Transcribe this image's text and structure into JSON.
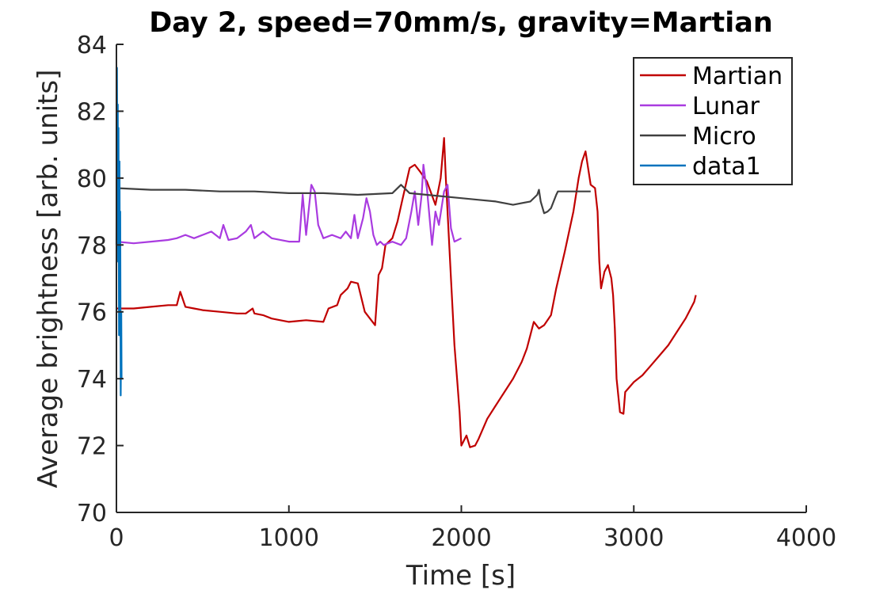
{
  "chart_data": {
    "type": "line",
    "title": "Day 2, speed=70mm/s, gravity=Martian",
    "xlabel": "Time [s]",
    "ylabel": "Average brightness [arb. units]",
    "xlim": [
      0,
      4000
    ],
    "ylim": [
      70,
      84
    ],
    "x_ticks": [
      0,
      1000,
      2000,
      3000,
      4000
    ],
    "x_tick_labels": [
      "0",
      "1000",
      "2000",
      "3000",
      "4000"
    ],
    "y_ticks": [
      70,
      72,
      74,
      76,
      78,
      80,
      82,
      84
    ],
    "y_tick_labels": [
      "70",
      "72",
      "74",
      "76",
      "78",
      "80",
      "82",
      "84"
    ],
    "grid": false,
    "legend_position": "top-right",
    "series": [
      {
        "name": "Martian",
        "color": "#c00000",
        "x": [
          0,
          100,
          200,
          300,
          350,
          370,
          400,
          450,
          500,
          600,
          700,
          750,
          790,
          800,
          850,
          900,
          1000,
          1100,
          1200,
          1230,
          1280,
          1300,
          1340,
          1360,
          1400,
          1440,
          1470,
          1500,
          1520,
          1540,
          1560,
          1600,
          1630,
          1660,
          1700,
          1730,
          1760,
          1800,
          1850,
          1880,
          1900,
          1910,
          1940,
          1960,
          1975,
          1990,
          2000,
          2030,
          2050,
          2080,
          2100,
          2150,
          2200,
          2250,
          2300,
          2350,
          2380,
          2400,
          2420,
          2450,
          2480,
          2520,
          2550,
          2600,
          2650,
          2680,
          2700,
          2720,
          2750,
          2775,
          2790,
          2800,
          2810,
          2830,
          2850,
          2870,
          2880,
          2890,
          2900,
          2920,
          2940,
          2950,
          3000,
          3050,
          3100,
          3150,
          3200,
          3250,
          3300,
          3350,
          3360
        ],
        "y": [
          76.1,
          76.1,
          76.15,
          76.2,
          76.2,
          76.6,
          76.15,
          76.1,
          76.05,
          76.0,
          75.95,
          75.95,
          76.1,
          75.95,
          75.9,
          75.8,
          75.7,
          75.75,
          75.7,
          76.1,
          76.2,
          76.5,
          76.7,
          76.9,
          76.85,
          76.0,
          75.8,
          75.6,
          77.1,
          77.3,
          78.0,
          78.2,
          78.7,
          79.4,
          80.3,
          80.4,
          80.2,
          79.9,
          79.2,
          80.0,
          81.2,
          80.0,
          77.0,
          75.0,
          74.0,
          73.0,
          72.0,
          72.3,
          71.95,
          72.0,
          72.2,
          72.8,
          73.2,
          73.6,
          74.0,
          74.5,
          74.9,
          75.3,
          75.7,
          75.5,
          75.6,
          75.9,
          76.7,
          77.8,
          79.0,
          80.0,
          80.5,
          80.8,
          79.8,
          79.7,
          79.0,
          77.5,
          76.7,
          77.2,
          77.4,
          77.0,
          76.5,
          75.5,
          74.0,
          73.0,
          72.95,
          73.6,
          73.9,
          74.1,
          74.4,
          74.7,
          75.0,
          75.4,
          75.8,
          76.3,
          76.5
        ]
      },
      {
        "name": "Lunar",
        "color": "#a93be0",
        "x": [
          0,
          100,
          200,
          300,
          350,
          400,
          450,
          500,
          550,
          600,
          620,
          650,
          700,
          750,
          780,
          800,
          850,
          900,
          1000,
          1060,
          1080,
          1100,
          1130,
          1150,
          1170,
          1200,
          1250,
          1300,
          1330,
          1360,
          1380,
          1400,
          1430,
          1450,
          1470,
          1490,
          1510,
          1530,
          1550,
          1600,
          1650,
          1680,
          1710,
          1730,
          1750,
          1770,
          1780,
          1790,
          1800,
          1830,
          1850,
          1870,
          1900,
          1920,
          1940,
          1960,
          2000
        ],
        "y": [
          78.1,
          78.05,
          78.1,
          78.15,
          78.2,
          78.3,
          78.2,
          78.3,
          78.4,
          78.2,
          78.6,
          78.15,
          78.2,
          78.4,
          78.6,
          78.2,
          78.4,
          78.2,
          78.1,
          78.1,
          79.5,
          78.3,
          79.8,
          79.6,
          78.6,
          78.2,
          78.3,
          78.2,
          78.4,
          78.2,
          78.9,
          78.2,
          78.8,
          79.4,
          79.0,
          78.3,
          78.0,
          78.1,
          78.0,
          78.1,
          78.0,
          78.2,
          79.0,
          79.6,
          78.6,
          79.5,
          80.4,
          80.0,
          79.7,
          78.0,
          79.0,
          78.6,
          79.6,
          79.8,
          78.5,
          78.1,
          78.2
        ]
      },
      {
        "name": "Micro",
        "color": "#404040",
        "x": [
          0,
          200,
          400,
          600,
          800,
          1000,
          1200,
          1400,
          1600,
          1650,
          1700,
          1800,
          2000,
          2100,
          2200,
          2300,
          2400,
          2440,
          2450,
          2460,
          2480,
          2500,
          2520,
          2550,
          2560,
          2600,
          2650,
          2700,
          2750
        ],
        "y": [
          79.7,
          79.65,
          79.65,
          79.6,
          79.6,
          79.55,
          79.55,
          79.5,
          79.55,
          79.8,
          79.55,
          79.5,
          79.4,
          79.35,
          79.3,
          79.2,
          79.3,
          79.5,
          79.65,
          79.3,
          78.95,
          79.0,
          79.1,
          79.5,
          79.6,
          79.6,
          79.6,
          79.6,
          79.6
        ]
      },
      {
        "name": "data1",
        "color": "#0072bd",
        "x": [
          0,
          3,
          6,
          8,
          10,
          12,
          15,
          18,
          20,
          22,
          25,
          28,
          30
        ],
        "y": [
          78.0,
          83.3,
          79.0,
          82.2,
          77.5,
          81.5,
          75.3,
          80.5,
          76.5,
          79.0,
          73.5,
          76.0,
          74.0
        ]
      }
    ]
  }
}
